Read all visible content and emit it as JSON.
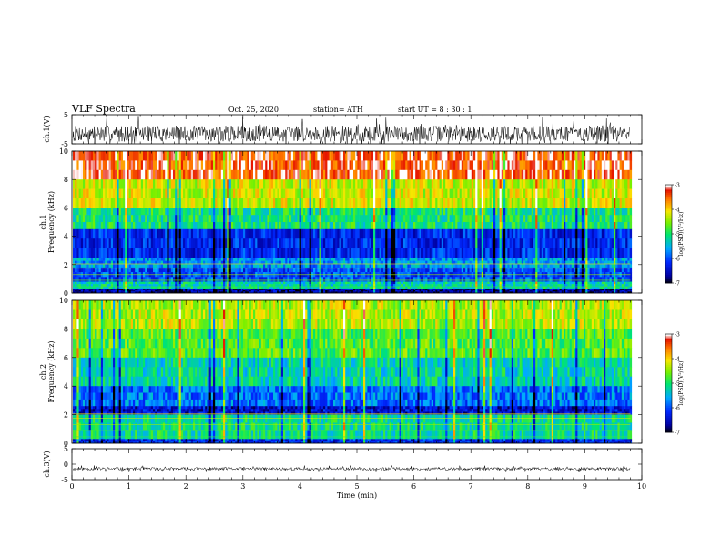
{
  "header": {
    "title": "VLF Spectra",
    "date": "Oct. 25, 2020",
    "station": "station= ATH",
    "start": "start UT = 8 : 30 : 1"
  },
  "chart_data": [
    {
      "type": "line",
      "ylabel": "ch.1(V)",
      "ylim": [
        -5,
        5
      ],
      "yticks": [
        "5",
        "-5"
      ],
      "x_range": [
        0,
        10
      ],
      "series_color": "#000000",
      "description_level": -1.5
    },
    {
      "type": "heatmap",
      "ylabel": "ch.1 Frequency (kHz)",
      "ylim": [
        0,
        10
      ],
      "yticks": [
        "10",
        "8",
        "6",
        "4",
        "2",
        "0"
      ],
      "x_range": [
        0,
        9.8
      ],
      "colorbar": {
        "label": "log(PSD)(V²/Hz)",
        "ticks": [
          "-3",
          "-4",
          "-5",
          "-6",
          "-7"
        ],
        "range": [
          -7,
          -3
        ]
      },
      "bands": [
        {
          "f": [
            8,
            10
          ],
          "level": -3.3
        },
        {
          "f": [
            6,
            8
          ],
          "level": -4.2
        },
        {
          "f": [
            4.5,
            6
          ],
          "level": -5.0
        },
        {
          "f": [
            2.5,
            4.5
          ],
          "level": -6.2
        },
        {
          "f": [
            1.8,
            2.5
          ],
          "level": -5.6
        },
        {
          "f": [
            0.8,
            1.8
          ],
          "level": -6.0
        },
        {
          "f": [
            0.3,
            0.8
          ],
          "level": -5.2
        },
        {
          "f": [
            0,
            0.3
          ],
          "level": -6.6
        }
      ]
    },
    {
      "type": "heatmap",
      "ylabel": "ch.2 Frequency (kHz)",
      "ylim": [
        0,
        10
      ],
      "yticks": [
        "10",
        "8",
        "6",
        "4",
        "2",
        "0"
      ],
      "x_range": [
        0,
        9.8
      ],
      "colorbar": {
        "label": "log(PSD)(V²/Hz)",
        "ticks": [
          "-3",
          "-4",
          "-5",
          "-6",
          "-7"
        ],
        "range": [
          -7,
          -3
        ]
      },
      "bands": [
        {
          "f": [
            8,
            10
          ],
          "level": -4.3
        },
        {
          "f": [
            6,
            8
          ],
          "level": -4.7
        },
        {
          "f": [
            4,
            6
          ],
          "level": -5.2
        },
        {
          "f": [
            2.6,
            4
          ],
          "level": -5.8
        },
        {
          "f": [
            2,
            2.6
          ],
          "level": -6.4
        },
        {
          "f": [
            0.3,
            2
          ],
          "level": -5.1
        },
        {
          "f": [
            0,
            0.3
          ],
          "level": -6.2
        }
      ]
    },
    {
      "type": "line",
      "ylabel": "ch.3(V)",
      "ylim": [
        -5,
        5
      ],
      "yticks": [
        "5",
        "0",
        "-5"
      ],
      "x_range": [
        0,
        10
      ],
      "series_color": "#000000",
      "description_level": -1.5,
      "xlabel": "Time (min)",
      "xticks": [
        "0",
        "1",
        "2",
        "3",
        "4",
        "5",
        "6",
        "7",
        "8",
        "9",
        "10"
      ]
    }
  ]
}
